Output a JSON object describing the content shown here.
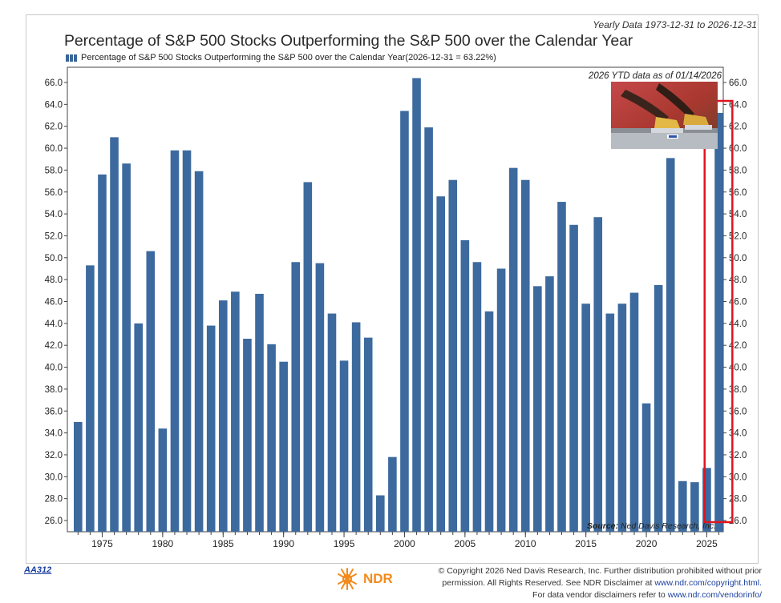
{
  "header": {
    "range": "Yearly Data 1973-12-31 to 2026-12-31",
    "title": "Percentage of S&P 500 Stocks Outperforming the S&P 500 over the Calendar Year",
    "legend": "Percentage of S&P 500 Stocks Outperforming the S&P 500 over the Calendar Year(2026-12-31 = 63.22%)"
  },
  "chart_data": {
    "type": "bar",
    "title": "Percentage of S&P 500 Stocks Outperforming the S&P 500 over the Calendar Year",
    "xlabel": "",
    "ylabel": "",
    "ylim": [
      25,
      67
    ],
    "yticks": [
      "26.0",
      "28.0",
      "30.0",
      "32.0",
      "34.0",
      "36.0",
      "38.0",
      "40.0",
      "42.0",
      "44.0",
      "46.0",
      "48.0",
      "50.0",
      "52.0",
      "54.0",
      "56.0",
      "58.0",
      "60.0",
      "62.0",
      "64.0",
      "66.0"
    ],
    "xticks": [
      1975,
      1980,
      1985,
      1990,
      1995,
      2000,
      2005,
      2010,
      2015,
      2020,
      2025
    ],
    "categories": [
      1973,
      1974,
      1975,
      1976,
      1977,
      1978,
      1979,
      1980,
      1981,
      1982,
      1983,
      1984,
      1985,
      1986,
      1987,
      1988,
      1989,
      1990,
      1991,
      1992,
      1993,
      1994,
      1995,
      1996,
      1997,
      1998,
      1999,
      2000,
      2001,
      2002,
      2003,
      2004,
      2005,
      2006,
      2007,
      2008,
      2009,
      2010,
      2011,
      2012,
      2013,
      2014,
      2015,
      2016,
      2017,
      2018,
      2019,
      2020,
      2021,
      2022,
      2023,
      2024,
      2025,
      2026
    ],
    "values": [
      35.0,
      49.3,
      57.6,
      61.0,
      58.6,
      44.0,
      50.6,
      34.4,
      59.8,
      59.8,
      57.9,
      43.8,
      46.1,
      46.9,
      42.6,
      46.7,
      42.1,
      40.5,
      49.6,
      56.9,
      49.5,
      44.9,
      40.6,
      44.1,
      42.7,
      28.3,
      31.8,
      63.4,
      66.4,
      61.9,
      55.6,
      57.1,
      51.6,
      49.6,
      45.1,
      49.0,
      58.2,
      57.1,
      47.4,
      48.3,
      55.1,
      53.0,
      45.8,
      53.7,
      44.9,
      45.8,
      46.8,
      36.7,
      47.5,
      59.1,
      29.6,
      29.5,
      30.8,
      63.22
    ],
    "highlight_category": 2026,
    "annotations": {
      "ytd": "2026 YTD data as of 01/14/2026",
      "source_label": "Source:",
      "source_text": "Ned Davis Research, Inc."
    },
    "colors": {
      "bar": "#3d6a9e",
      "highlight_box": "#e0141e",
      "axis": "#444444"
    }
  },
  "footer": {
    "code": "AA312",
    "brand": "NDR",
    "copyright_line1": "© Copyright 2026 Ned Davis Research, Inc. Further distribution prohibited without prior",
    "copyright_line2a": "permission. All Rights Reserved. See NDR Disclaimer at",
    "copyright_link1": "www.ndr.com/copyright.html.",
    "copyright_line3a": "For data vendor disclaimers refer to",
    "copyright_link2": "www.ndr.com/vendorinfo/"
  }
}
